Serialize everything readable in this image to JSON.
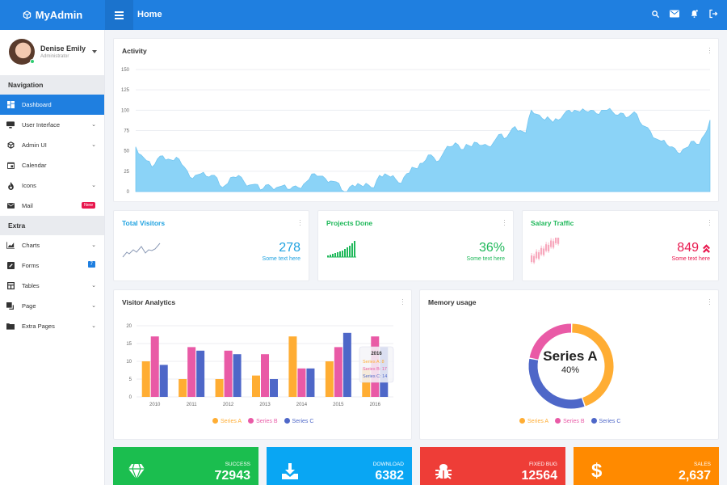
{
  "topbar": {
    "brand": "MyAdmin",
    "page_title": "Home",
    "icons": [
      "search-icon",
      "mail-icon",
      "bell-icon",
      "logout-icon"
    ]
  },
  "profile": {
    "name": "Denise Emily",
    "role": "Administrator"
  },
  "sidebar": {
    "sections": [
      {
        "title": "Navigation",
        "items": [
          {
            "label": "Dashboard",
            "icon": "dashboard-icon",
            "active": true
          },
          {
            "label": "User Interface",
            "icon": "monitor-icon",
            "chevron": true
          },
          {
            "label": "Admin UI",
            "icon": "cube-icon",
            "chevron": true
          },
          {
            "label": "Calendar",
            "icon": "calendar-icon"
          },
          {
            "label": "Icons",
            "icon": "fire-icon",
            "chevron": true
          },
          {
            "label": "Mail",
            "icon": "mail-icon",
            "badge": "New"
          }
        ]
      },
      {
        "title": "Extra",
        "items": [
          {
            "label": "Charts",
            "icon": "chart-icon",
            "chevron": true
          },
          {
            "label": "Forms",
            "icon": "pencil-box-icon",
            "badge": "7"
          },
          {
            "label": "Tables",
            "icon": "table-icon",
            "chevron": true
          },
          {
            "label": "Page",
            "icon": "copy-icon",
            "chevron": true
          },
          {
            "label": "Extra Pages",
            "icon": "folder-icon",
            "chevron": true
          }
        ]
      }
    ]
  },
  "activity": {
    "title": "Activity"
  },
  "stats": [
    {
      "title": "Total Visitors",
      "value": "278",
      "sub": "Some text here",
      "color": "#1fa2e0"
    },
    {
      "title": "Projects Done",
      "value": "36%",
      "sub": "Some text here",
      "color": "#1fb85a"
    },
    {
      "title": "Salary Traffic",
      "value": "849",
      "sub": "Some text here",
      "color": "#e8174d"
    }
  ],
  "visitor_analytics": {
    "title": "Visitor Analytics"
  },
  "memory": {
    "title": "Memory usage",
    "center_label": "Series A",
    "center_value": "40%"
  },
  "tiles": [
    {
      "label": "SUCCESS",
      "value": "72943",
      "color": "#1bbe4f",
      "icon": "diamond-icon"
    },
    {
      "label": "DOWNLOAD",
      "value": "6382",
      "color": "#09a6f3",
      "icon": "download-icon"
    },
    {
      "label": "FIXED BUG",
      "value": "12564",
      "color": "#ee3d37",
      "icon": "bug-icon"
    },
    {
      "label": "SALES",
      "value": "2,637",
      "color": "#ff8a00",
      "icon": "dollar-icon"
    }
  ],
  "chart_data": [
    {
      "type": "area",
      "title": "Activity",
      "ylim": [
        0,
        150
      ],
      "yticks": [
        0,
        25,
        50,
        75,
        100,
        125,
        150
      ],
      "grid": true,
      "color": "#8bd3f7",
      "values": [
        55,
        45,
        38,
        30,
        40,
        44,
        40,
        38,
        40,
        30,
        18,
        20,
        22,
        19,
        20,
        17,
        5,
        10,
        18,
        20,
        12,
        8,
        9,
        2,
        8,
        6,
        5,
        7,
        3,
        6,
        5,
        9,
        15,
        22,
        19,
        16,
        13,
        12,
        2,
        0,
        8,
        10,
        6,
        8,
        5,
        20,
        22,
        18,
        15,
        10,
        22,
        30,
        28,
        35,
        45,
        42,
        38,
        50,
        55,
        60,
        52,
        58,
        55,
        60,
        57,
        56,
        60,
        70,
        65,
        72,
        80,
        75,
        72,
        100,
        95,
        90,
        92,
        85,
        88,
        95,
        100,
        100,
        98,
        99,
        100,
        96,
        100,
        100,
        98,
        94,
        96,
        92,
        98,
        86,
        80,
        74,
        65,
        62,
        58,
        55,
        48,
        52,
        55,
        62,
        58,
        70,
        88
      ]
    },
    {
      "type": "bar",
      "title": "Visitor Analytics",
      "categories": [
        "2010",
        "2011",
        "2012",
        "2013",
        "2014",
        "2015",
        "2016"
      ],
      "series": [
        {
          "name": "Series A",
          "color": "#ffad33",
          "values": [
            10,
            5,
            5,
            6,
            17,
            10,
            8
          ]
        },
        {
          "name": "Series B",
          "color": "#e95aa6",
          "values": [
            17,
            14,
            13,
            12,
            8,
            14,
            17
          ]
        },
        {
          "name": "Series C",
          "color": "#4e67c8",
          "values": [
            9,
            13,
            12,
            5,
            8,
            18,
            14
          ]
        }
      ],
      "ylim": [
        0,
        20
      ],
      "yticks": [
        0,
        5,
        10,
        15,
        20
      ],
      "legend_position": "bottom",
      "tooltip": {
        "title": "2016",
        "lines": [
          "Series A: 8",
          "Series B: 17",
          "Series C: 14"
        ]
      }
    },
    {
      "type": "pie",
      "title": "Memory usage",
      "donut": true,
      "labels": [
        "Series A",
        "Series B",
        "Series C"
      ],
      "values": [
        40,
        20,
        30
      ],
      "colors": [
        "#ffad33",
        "#e95aa6",
        "#4e67c8"
      ],
      "center": {
        "label": "Series A",
        "value": "40%"
      },
      "legend_position": "bottom"
    }
  ]
}
